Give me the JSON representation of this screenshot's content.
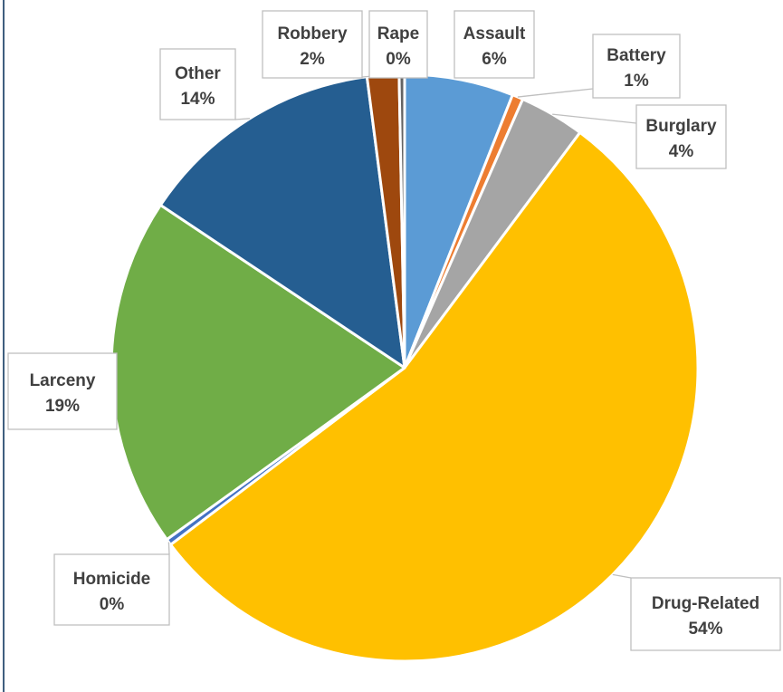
{
  "chart_data": {
    "type": "pie",
    "title": "",
    "start_angle_deg": 0,
    "direction": "clockwise",
    "slices": [
      {
        "label": "Assault",
        "pct_text": "6%",
        "value": 6.0,
        "color": "#5b9bd5"
      },
      {
        "label": "Battery",
        "pct_text": "1%",
        "value": 0.6,
        "color": "#ed7d31"
      },
      {
        "label": "Burglary",
        "pct_text": "4%",
        "value": 3.6,
        "color": "#a5a5a5"
      },
      {
        "label": "Drug-Related",
        "pct_text": "54%",
        "value": 54.5,
        "color": "#ffc000"
      },
      {
        "label": "Homicide",
        "pct_text": "0%",
        "value": 0.35,
        "color": "#4472c4"
      },
      {
        "label": "Larceny",
        "pct_text": "19%",
        "value": 19.3,
        "color": "#70ad47"
      },
      {
        "label": "Other",
        "pct_text": "14%",
        "value": 13.6,
        "color": "#255e91"
      },
      {
        "label": "Robbery",
        "pct_text": "2%",
        "value": 1.75,
        "color": "#9e480e"
      },
      {
        "label": "Rape",
        "pct_text": "0%",
        "value": 0.3,
        "color": "#636363"
      }
    ]
  }
}
